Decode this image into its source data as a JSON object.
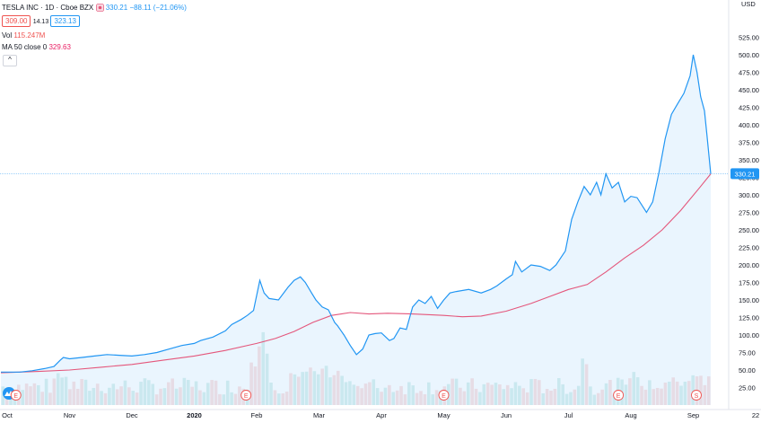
{
  "legend": {
    "symbol": "TESLA INC · 1D · Cboe BZX",
    "close": "330.21",
    "change": "−88.11 (−21.06%)",
    "bid": "309.00",
    "spread": "14.13",
    "ask": "323.13",
    "vol_label": "Vol",
    "vol_value": "115.247M",
    "ma_label": "MA 50 close 0",
    "ma_value": "329.63",
    "collapse_glyph": "^"
  },
  "colors": {
    "price_line": "#2196f3",
    "area_fill": "#e3f2fd",
    "ma_line": "#e4567b",
    "vol_up": "#80cbc4",
    "vol_down": "#ef9a9a",
    "last_price_label": "#2196f3"
  },
  "chart_data": {
    "type": "area",
    "currency": "USD",
    "x_labels": [
      "Oct",
      "Nov",
      "Dec",
      "2020",
      "Feb",
      "Mar",
      "Apr",
      "May",
      "Jun",
      "Jul",
      "Aug",
      "Sep",
      "22"
    ],
    "y_ticks": [
      25,
      50,
      75,
      100,
      125,
      150,
      175,
      200,
      225,
      250,
      275,
      300,
      325,
      350,
      375,
      400,
      425,
      450,
      475,
      500,
      525
    ],
    "ylim": [
      0,
      550
    ],
    "last_price": 330.21,
    "earnings_markers": [
      {
        "letter": "E",
        "x": 0.14
      },
      {
        "letter": "E",
        "x": 3.83
      },
      {
        "letter": "E",
        "x": 7.0
      },
      {
        "letter": "E",
        "x": 9.8
      },
      {
        "letter": "S",
        "x": 11.05
      }
    ],
    "price_series": [
      [
        -0.1,
        47
      ],
      [
        0.2,
        47
      ],
      [
        0.4,
        49
      ],
      [
        0.6,
        52
      ],
      [
        0.75,
        55
      ],
      [
        0.85,
        64
      ],
      [
        0.9,
        68
      ],
      [
        1.0,
        66
      ],
      [
        1.2,
        68
      ],
      [
        1.4,
        70
      ],
      [
        1.6,
        72
      ],
      [
        1.8,
        71
      ],
      [
        2.0,
        70
      ],
      [
        2.2,
        72
      ],
      [
        2.4,
        75
      ],
      [
        2.6,
        80
      ],
      [
        2.8,
        85
      ],
      [
        3.0,
        88
      ],
      [
        3.1,
        92
      ],
      [
        3.3,
        97
      ],
      [
        3.5,
        106
      ],
      [
        3.6,
        115
      ],
      [
        3.75,
        122
      ],
      [
        3.85,
        128
      ],
      [
        3.95,
        135
      ],
      [
        4.05,
        178
      ],
      [
        4.12,
        160
      ],
      [
        4.2,
        152
      ],
      [
        4.35,
        150
      ],
      [
        4.5,
        168
      ],
      [
        4.6,
        178
      ],
      [
        4.7,
        183
      ],
      [
        4.78,
        175
      ],
      [
        4.88,
        160
      ],
      [
        4.95,
        150
      ],
      [
        5.05,
        140
      ],
      [
        5.15,
        136
      ],
      [
        5.25,
        118
      ],
      [
        5.3,
        113
      ],
      [
        5.4,
        100
      ],
      [
        5.5,
        85
      ],
      [
        5.6,
        72
      ],
      [
        5.7,
        80
      ],
      [
        5.8,
        100
      ],
      [
        5.9,
        102
      ],
      [
        6.0,
        103
      ],
      [
        6.07,
        97
      ],
      [
        6.13,
        92
      ],
      [
        6.2,
        95
      ],
      [
        6.3,
        110
      ],
      [
        6.4,
        108
      ],
      [
        6.5,
        140
      ],
      [
        6.6,
        150
      ],
      [
        6.7,
        145
      ],
      [
        6.8,
        155
      ],
      [
        6.9,
        138
      ],
      [
        7.0,
        150
      ],
      [
        7.1,
        160
      ],
      [
        7.2,
        162
      ],
      [
        7.4,
        165
      ],
      [
        7.6,
        160
      ],
      [
        7.75,
        165
      ],
      [
        7.85,
        170
      ],
      [
        8.0,
        180
      ],
      [
        8.1,
        186
      ],
      [
        8.15,
        205
      ],
      [
        8.25,
        190
      ],
      [
        8.4,
        200
      ],
      [
        8.55,
        198
      ],
      [
        8.7,
        192
      ],
      [
        8.8,
        200
      ],
      [
        8.95,
        220
      ],
      [
        9.05,
        265
      ],
      [
        9.15,
        290
      ],
      [
        9.25,
        312
      ],
      [
        9.35,
        300
      ],
      [
        9.45,
        318
      ],
      [
        9.52,
        300
      ],
      [
        9.6,
        330
      ],
      [
        9.7,
        310
      ],
      [
        9.8,
        318
      ],
      [
        9.9,
        290
      ],
      [
        10.0,
        298
      ],
      [
        10.1,
        296
      ],
      [
        10.25,
        275
      ],
      [
        10.35,
        290
      ],
      [
        10.45,
        332
      ],
      [
        10.55,
        380
      ],
      [
        10.65,
        415
      ],
      [
        10.75,
        430
      ],
      [
        10.85,
        445
      ],
      [
        10.95,
        470
      ],
      [
        11.0,
        500
      ],
      [
        11.06,
        475
      ],
      [
        11.12,
        440
      ],
      [
        11.18,
        420
      ],
      [
        11.22,
        385
      ],
      [
        11.28,
        330
      ]
    ],
    "ma_series": [
      [
        -0.1,
        46
      ],
      [
        0.5,
        48
      ],
      [
        1.0,
        50
      ],
      [
        1.5,
        54
      ],
      [
        2.0,
        58
      ],
      [
        2.5,
        64
      ],
      [
        3.0,
        70
      ],
      [
        3.5,
        78
      ],
      [
        4.0,
        88
      ],
      [
        4.3,
        95
      ],
      [
        4.6,
        105
      ],
      [
        4.9,
        118
      ],
      [
        5.2,
        128
      ],
      [
        5.5,
        132
      ],
      [
        5.8,
        130
      ],
      [
        6.1,
        131
      ],
      [
        6.5,
        130
      ],
      [
        7.0,
        128
      ],
      [
        7.3,
        126
      ],
      [
        7.6,
        127
      ],
      [
        8.0,
        134
      ],
      [
        8.4,
        145
      ],
      [
        8.7,
        155
      ],
      [
        9.0,
        165
      ],
      [
        9.3,
        172
      ],
      [
        9.6,
        190
      ],
      [
        9.9,
        210
      ],
      [
        10.2,
        228
      ],
      [
        10.5,
        250
      ],
      [
        10.8,
        278
      ],
      [
        11.1,
        310
      ],
      [
        11.28,
        330
      ]
    ],
    "volume_scale_max": 150
  }
}
